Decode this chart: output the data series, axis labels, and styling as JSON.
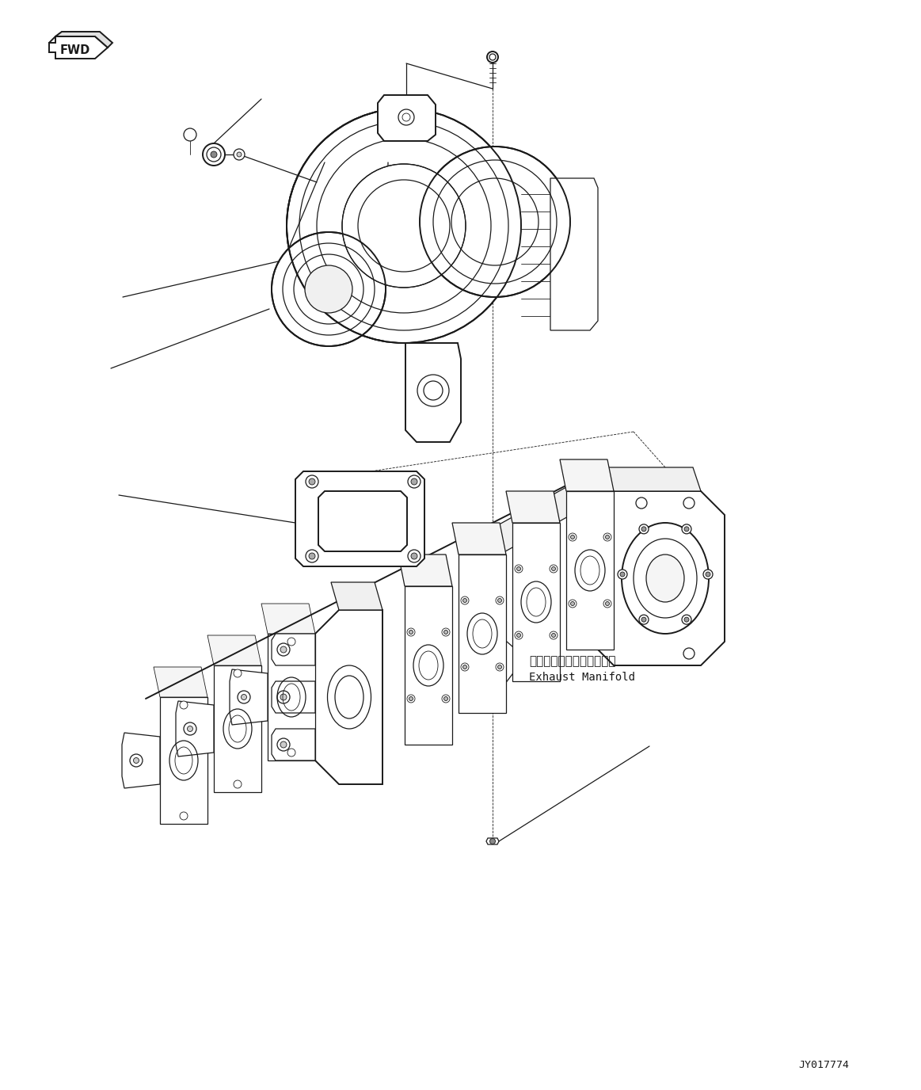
{
  "bg_color": "#ffffff",
  "line_color": "#1a1a1a",
  "figsize": [
    11.63,
    13.76
  ],
  "dpi": 100,
  "label_exhaust_jp": "エキゾーストマニホールド",
  "label_exhaust_en": "Exhaust Manifold",
  "label_id": "JY017774",
  "label_fwd": "FWD"
}
